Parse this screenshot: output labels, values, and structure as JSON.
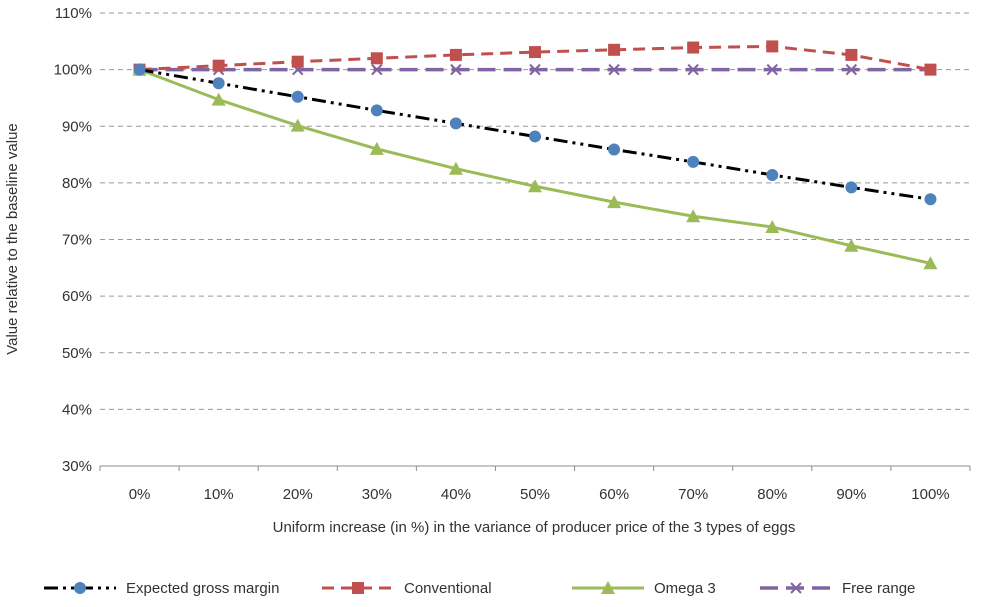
{
  "chart_data": {
    "type": "line",
    "title": "",
    "xlabel": "Uniform increase (in %) in the variance of producer price of the 3 types of eggs",
    "ylabel": "Value relative to the baseline value",
    "categories": [
      "0%",
      "10%",
      "20%",
      "30%",
      "40%",
      "50%",
      "60%",
      "70%",
      "80%",
      "90%",
      "100%"
    ],
    "ylim": [
      30,
      110
    ],
    "yticks": [
      "30%",
      "40%",
      "50%",
      "60%",
      "70%",
      "80%",
      "90%",
      "100%",
      "110%"
    ],
    "grid": true,
    "legend_position": "bottom",
    "series": [
      {
        "name": "Expected gross margin",
        "values": [
          100,
          97.6,
          95.2,
          92.8,
          90.5,
          88.2,
          85.9,
          83.7,
          81.4,
          79.2,
          77.1
        ],
        "color": "#000000",
        "marker_color": "#4f81bd",
        "marker": "circle",
        "dash": "dash-dot-dot"
      },
      {
        "name": "Conventional",
        "values": [
          100,
          100.7,
          101.4,
          102.0,
          102.6,
          103.1,
          103.5,
          103.9,
          104.1,
          102.6,
          100
        ],
        "color": "#c0504d",
        "marker_color": "#c0504d",
        "marker": "square",
        "dash": "dash"
      },
      {
        "name": "Omega 3",
        "values": [
          100,
          94.7,
          90.1,
          86.0,
          82.5,
          79.4,
          76.6,
          74.1,
          72.2,
          68.9,
          65.8
        ],
        "color": "#9bbb59",
        "marker_color": "#9bbb59",
        "marker": "triangle",
        "dash": "solid"
      },
      {
        "name": "Free range",
        "values": [
          100,
          100,
          100,
          100,
          100,
          100,
          100,
          100,
          100,
          100,
          100
        ],
        "color": "#8064a2",
        "marker_color": "#8064a2",
        "marker": "x",
        "dash": "long-dash"
      }
    ]
  }
}
